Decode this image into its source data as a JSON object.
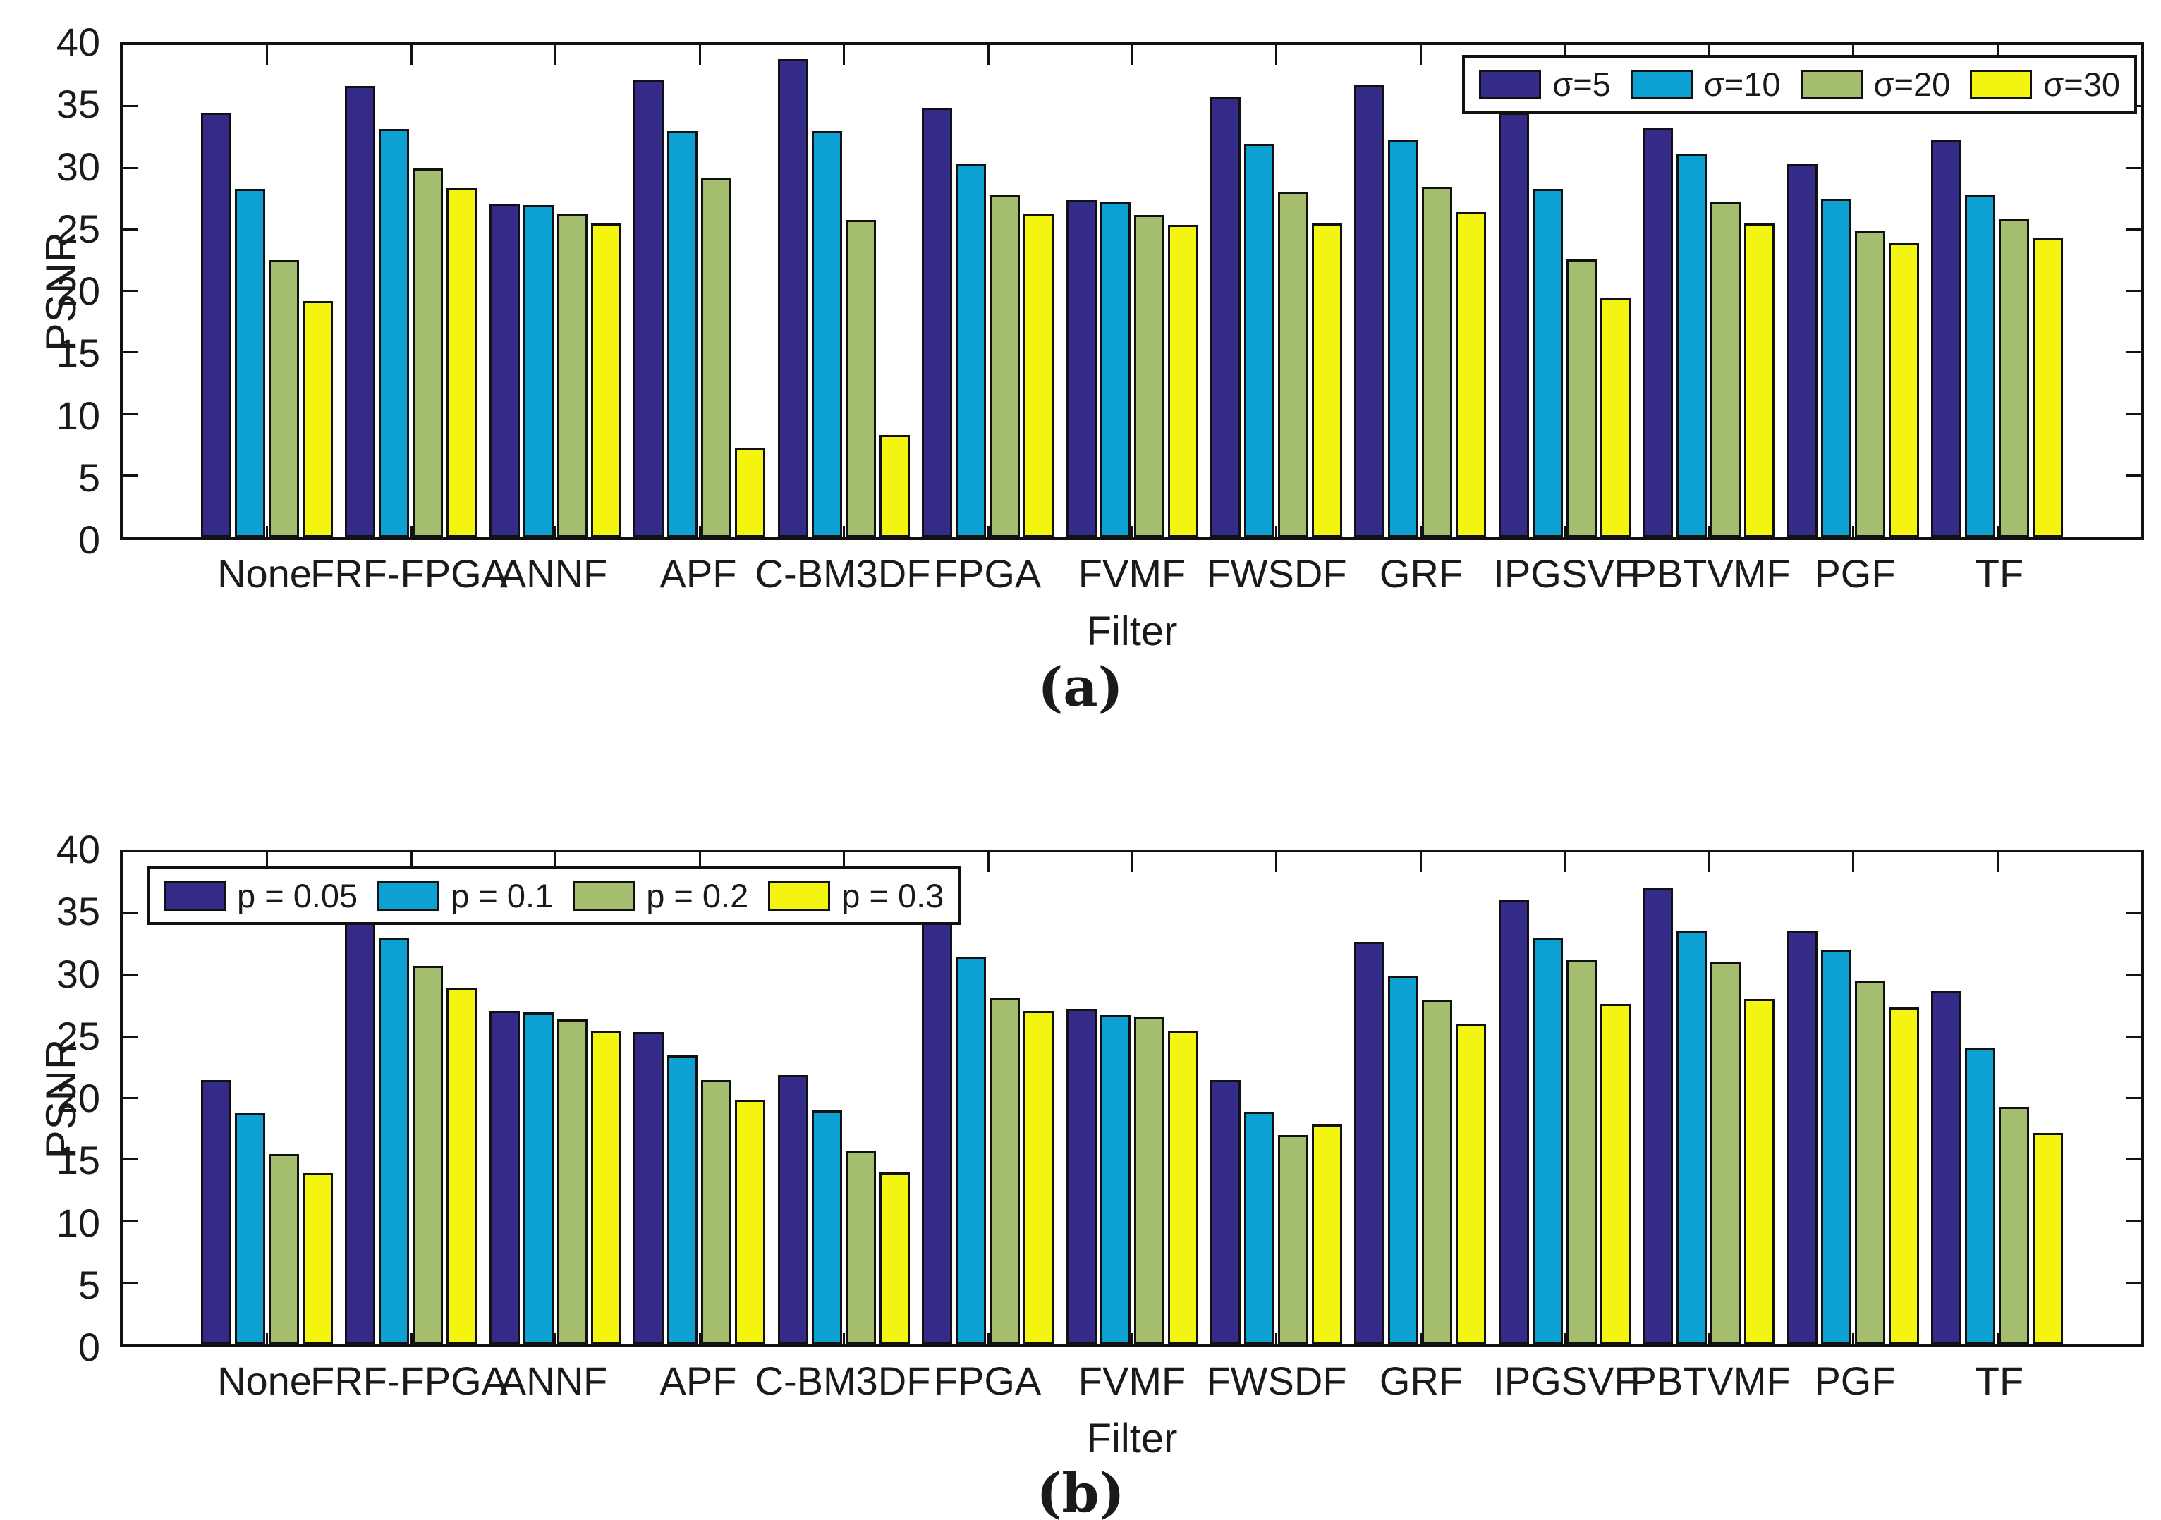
{
  "chart_data": [
    {
      "type": "bar",
      "caption": "(a)",
      "ylabel": "PSNR",
      "xlabel": "Filter",
      "ylim": [
        0,
        40
      ],
      "yticks": [
        0,
        5,
        10,
        15,
        20,
        25,
        30,
        35,
        40
      ],
      "grid": false,
      "legend_position": "top-right",
      "categories": [
        "None",
        "FRF-FPGA",
        "ANNF",
        "APF",
        "C-BM3DF",
        "FPGA",
        "FVMF",
        "FWSDF",
        "GRF",
        "IPGSVF",
        "PBTVMF",
        "PGF",
        "TF"
      ],
      "series": [
        {
          "name": "σ=5",
          "color": "#332b87",
          "values": [
            34.5,
            36.7,
            27.1,
            37.2,
            38.9,
            34.9,
            27.4,
            35.8,
            36.8,
            34.5,
            33.3,
            30.3,
            32.3
          ]
        },
        {
          "name": "σ=10",
          "color": "#0da0d3",
          "values": [
            28.3,
            33.2,
            27.0,
            33.0,
            33.0,
            30.4,
            27.2,
            32.0,
            32.3,
            28.3,
            31.2,
            27.5,
            27.8
          ]
        },
        {
          "name": "σ=20",
          "color": "#a4bd6e",
          "values": [
            22.5,
            30.0,
            26.3,
            29.2,
            25.8,
            27.8,
            26.2,
            28.1,
            28.5,
            22.6,
            27.2,
            24.9,
            25.9
          ]
        },
        {
          "name": "σ=30",
          "color": "#f4f411",
          "values": [
            19.2,
            28.4,
            25.5,
            7.3,
            8.3,
            26.3,
            25.4,
            25.5,
            26.5,
            19.5,
            25.5,
            23.9,
            24.3
          ]
        }
      ]
    },
    {
      "type": "bar",
      "caption": "(b)",
      "ylabel": "PSNR",
      "xlabel": "Filter",
      "ylim": [
        0,
        40
      ],
      "yticks": [
        0,
        5,
        10,
        15,
        20,
        25,
        30,
        35,
        40
      ],
      "grid": false,
      "legend_position": "top-left",
      "categories": [
        "None",
        "FRF-FPGA",
        "ANNF",
        "APF",
        "C-BM3DF",
        "FPGA",
        "FVMF",
        "FWSDF",
        "GRF",
        "IPGSVF",
        "PBTVMF",
        "PGF",
        "TF"
      ],
      "series": [
        {
          "name": "p = 0.05",
          "color": "#332b87",
          "values": [
            21.5,
            34.5,
            27.1,
            25.4,
            21.9,
            34.9,
            27.3,
            21.5,
            32.7,
            36.1,
            37.1,
            33.6,
            28.7
          ]
        },
        {
          "name": "p = 0.1",
          "color": "#0da0d3",
          "values": [
            18.8,
            33.0,
            27.0,
            23.5,
            19.0,
            31.5,
            26.8,
            18.9,
            30.0,
            33.0,
            33.6,
            32.1,
            24.1
          ]
        },
        {
          "name": "p = 0.2",
          "color": "#a4bd6e",
          "values": [
            15.5,
            30.8,
            26.4,
            21.5,
            15.7,
            28.2,
            26.6,
            17.0,
            28.0,
            31.3,
            31.1,
            29.5,
            19.3
          ]
        },
        {
          "name": "p = 0.3",
          "color": "#f4f411",
          "values": [
            13.9,
            29.0,
            25.5,
            19.9,
            14.0,
            27.1,
            25.5,
            17.9,
            26.0,
            27.7,
            28.1,
            27.4,
            17.2
          ]
        }
      ]
    }
  ]
}
